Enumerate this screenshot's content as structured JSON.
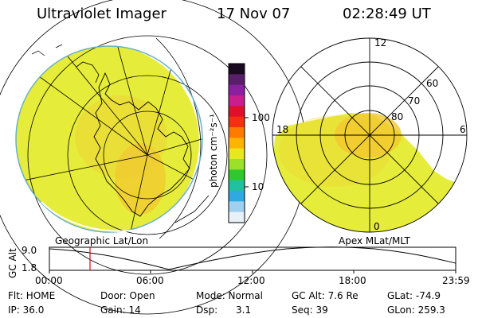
{
  "header": {
    "title": "Ultraviolet Imager",
    "date": "17 Nov 07",
    "time": "02:28:49 UT"
  },
  "colorbar": {
    "unit_label": "photon cm⁻²s⁻¹",
    "ticks": [
      "100",
      "10"
    ],
    "colors": [
      "#1a0a20",
      "#5a1f6a",
      "#8a1fa0",
      "#c81e8e",
      "#e0102a",
      "#f43010",
      "#ff7a00",
      "#ffb400",
      "#e8e820",
      "#9be02a",
      "#2fc82f",
      "#20c0a0",
      "#30a8e0",
      "#9fd0f0",
      "#e8f0f8"
    ]
  },
  "geo_panel": {
    "label": "Geographic Lat/Lon",
    "fill_color": "#e6ec3a",
    "bright_color": "#f2c830"
  },
  "polar_panel": {
    "label": "Apex MLat/MLT",
    "lat_labels": [
      "80",
      "70",
      "60"
    ],
    "mlt_labels": {
      "top": "12",
      "bottom": "0",
      "left": "18",
      "right": "6"
    }
  },
  "orbit_plot": {
    "ylabel": "GC Alt",
    "yticks": [
      "9.0",
      "1.8"
    ],
    "xticks": [
      "00:00",
      "06:00",
      "12:00",
      "18:00",
      "23:59"
    ],
    "current_time_fraction": 0.1
  },
  "info": {
    "flt": "Flt: HOME",
    "ip": "IP: 36.0",
    "door": "Door: Open",
    "gain": "Gain: 14",
    "mode": "Mode: Normal",
    "dsp": "Dsp:      3.1",
    "gcalt": "GC Alt: 7.6 Re",
    "seq": "Seq: 39",
    "glat": "GLat: -74.9",
    "glon": "GLon: 259.3"
  }
}
